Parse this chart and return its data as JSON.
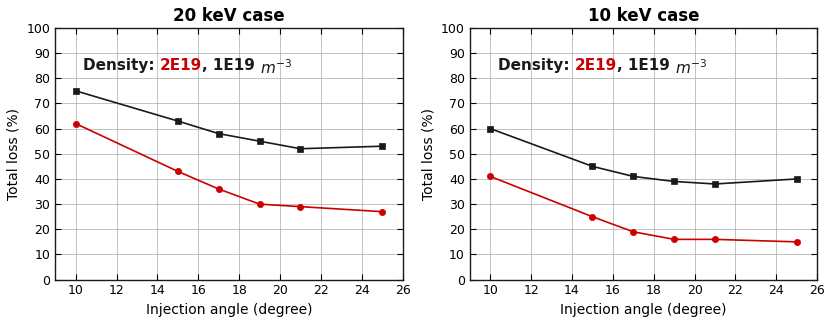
{
  "panel1_title": "20 keV case",
  "panel2_title": "10 keV case",
  "xlabel": "Injection angle (degree)",
  "ylabel": "Total loss (%)",
  "xlim": [
    9,
    26
  ],
  "ylim": [
    0,
    100
  ],
  "xticks": [
    10,
    12,
    14,
    16,
    18,
    20,
    22,
    24,
    26
  ],
  "yticks": [
    0,
    10,
    20,
    30,
    40,
    50,
    60,
    70,
    80,
    90,
    100
  ],
  "panel1_black_x": [
    10,
    15,
    17,
    19,
    21,
    25
  ],
  "panel1_black_y": [
    75,
    63,
    58,
    55,
    52,
    53
  ],
  "panel1_red_x": [
    10,
    15,
    17,
    19,
    21,
    25
  ],
  "panel1_red_y": [
    62,
    43,
    36,
    30,
    29,
    27
  ],
  "panel2_black_x": [
    10,
    15,
    17,
    19,
    21,
    25
  ],
  "panel2_black_y": [
    60,
    45,
    41,
    39,
    38,
    40
  ],
  "panel2_red_x": [
    10,
    15,
    17,
    19,
    21,
    25
  ],
  "panel2_red_y": [
    41,
    25,
    19,
    16,
    16,
    15
  ],
  "black_color": "#1a1a1a",
  "red_color": "#cc0000",
  "grid_color": "#aaaaaa",
  "bg_color": "#ffffff",
  "title_fontsize": 12,
  "label_fontsize": 10,
  "tick_fontsize": 9,
  "annotation_fontsize": 11
}
